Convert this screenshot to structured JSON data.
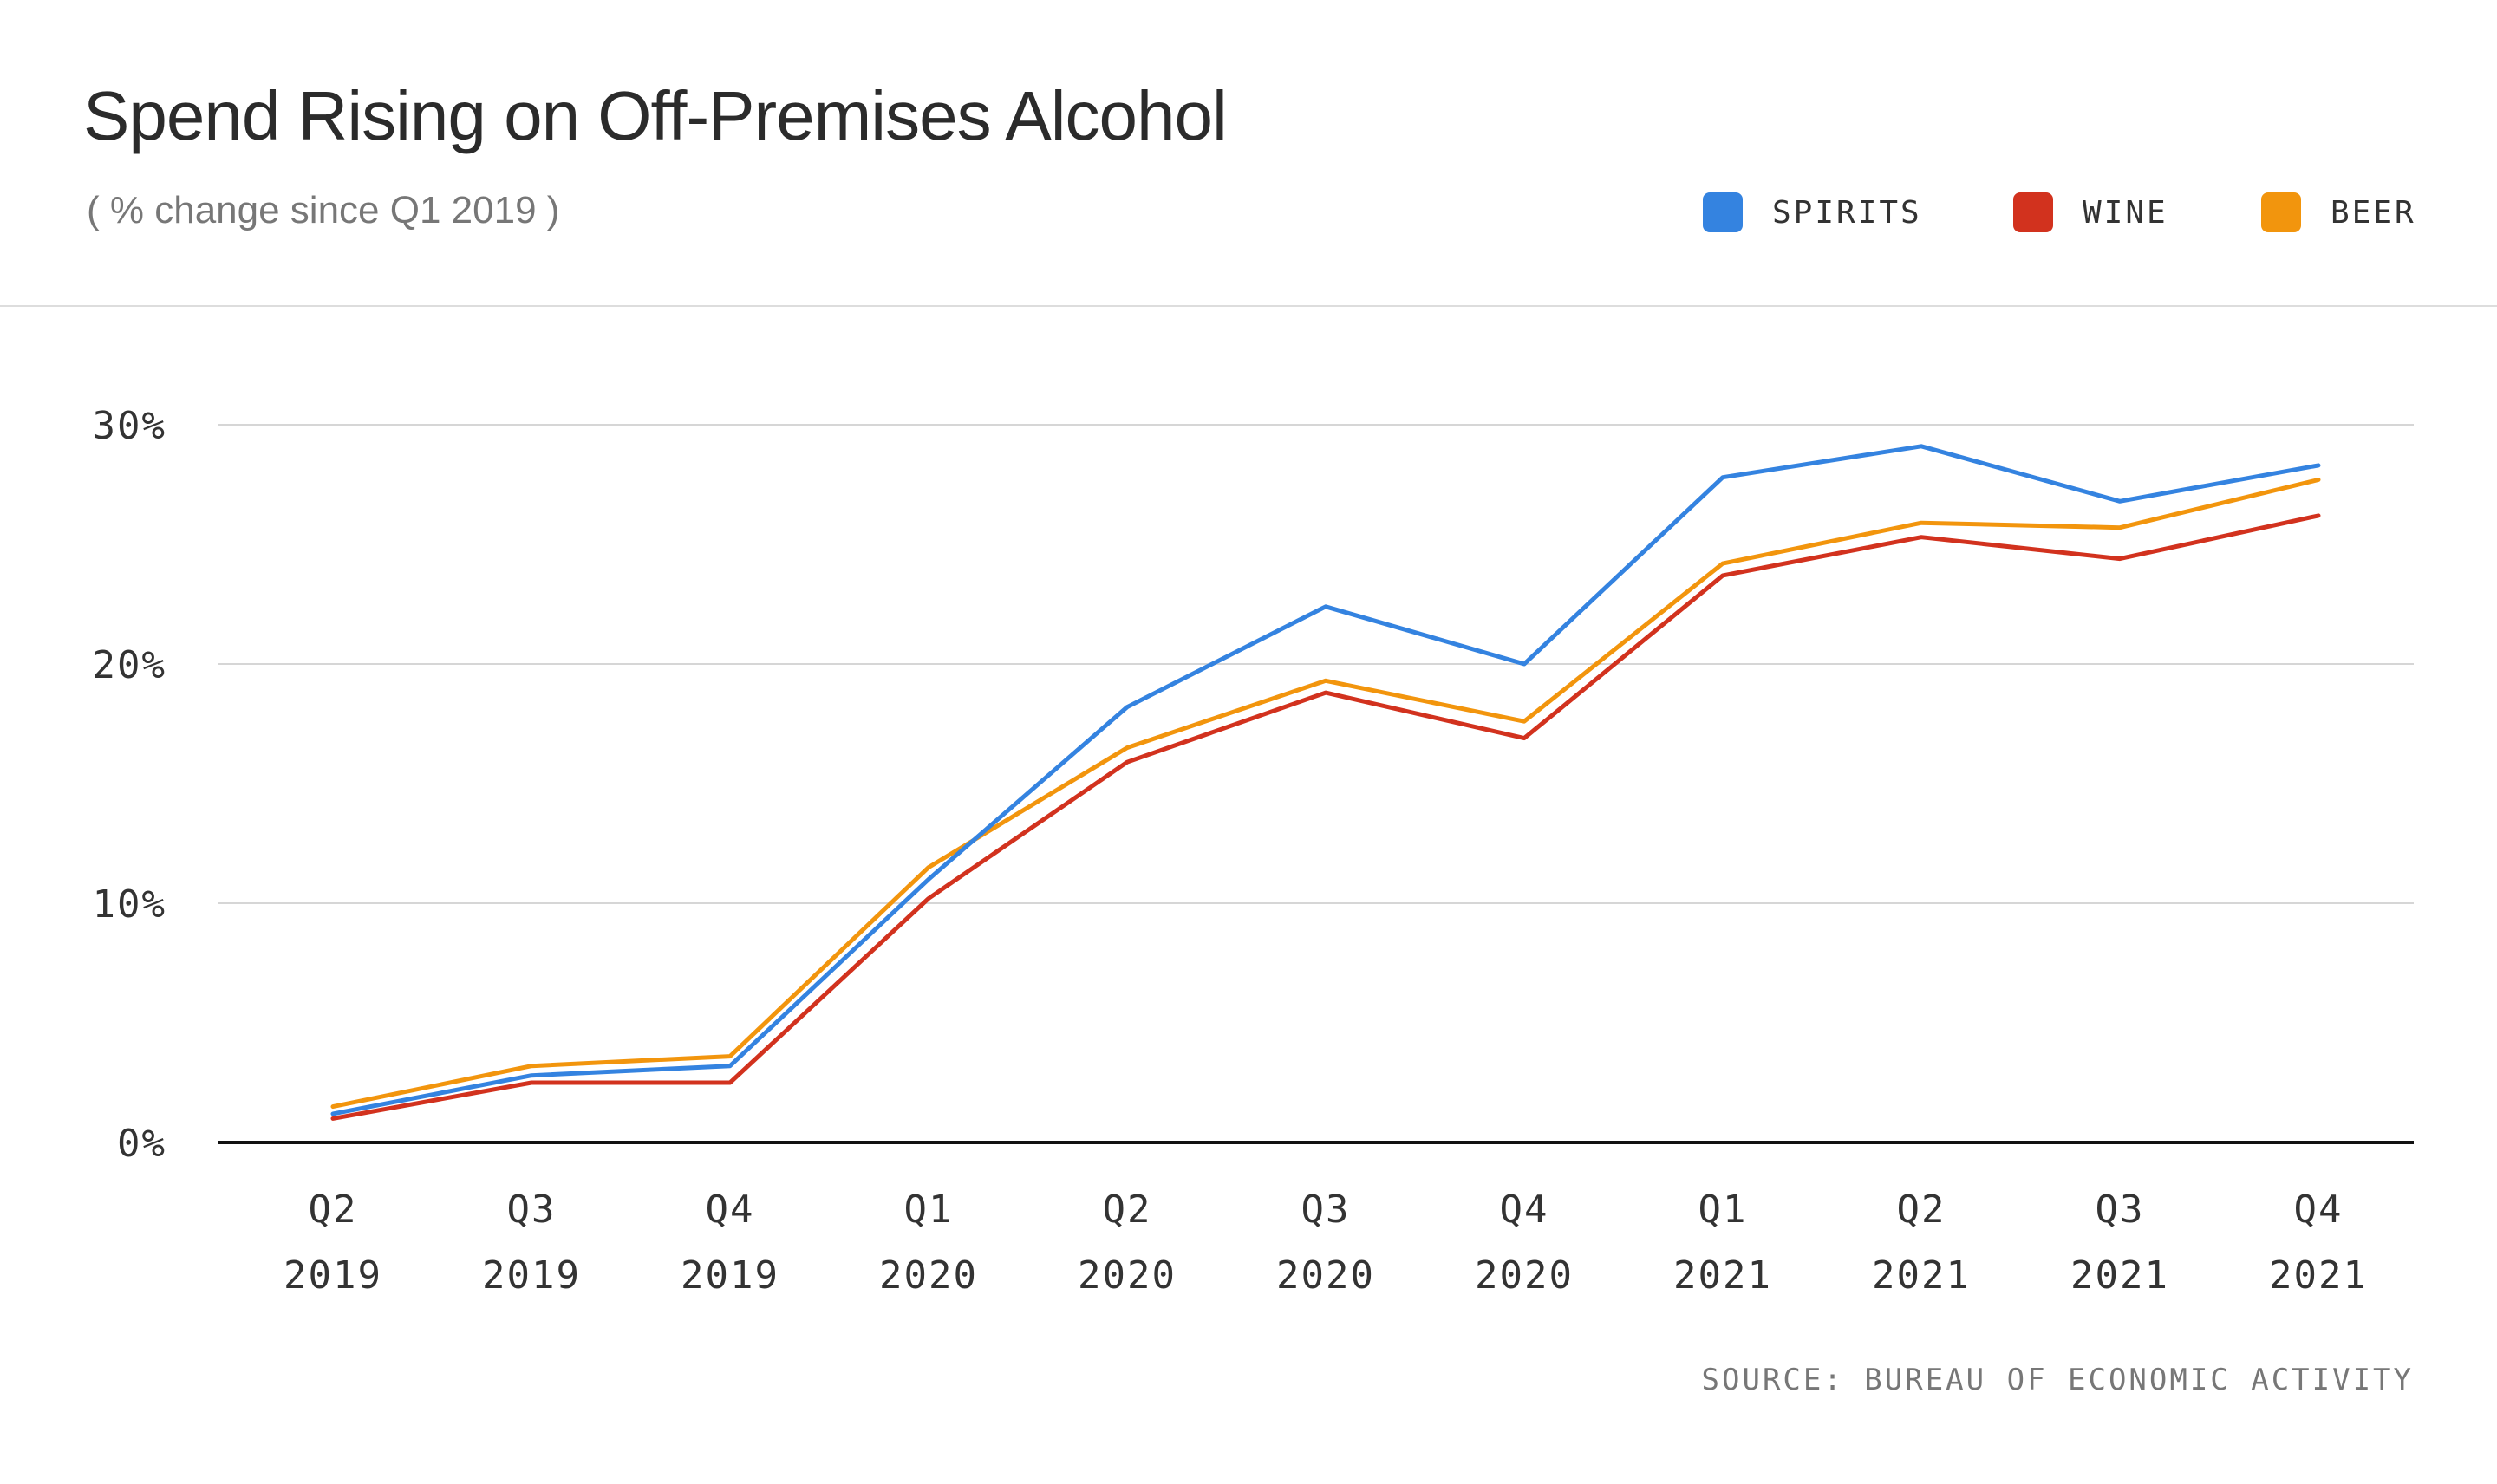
{
  "header": {
    "title": "Spend Rising on Off-Premises Alcohol",
    "subtitle": "( % change since Q1 2019 )"
  },
  "legend": [
    {
      "label": "SPIRITS",
      "color": "#3483E0"
    },
    {
      "label": "WINE",
      "color": "#D2321E"
    },
    {
      "label": "BEER",
      "color": "#F2950D"
    }
  ],
  "footer": {
    "source": "SOURCE: BUREAU OF ECONOMIC ACTIVITY"
  },
  "chart_data": {
    "type": "line",
    "title": "Spend Rising on Off-Premises Alcohol",
    "subtitle": "( % change since Q1 2019 )",
    "xlabel": "",
    "ylabel": "",
    "ylim": [
      0,
      30
    ],
    "yticks": [
      0,
      10,
      20,
      30
    ],
    "ytick_labels": [
      "0%",
      "10%",
      "20%",
      "30%"
    ],
    "grid": true,
    "legend_position": "top-right",
    "categories": [
      {
        "quarter": "Q2",
        "year": "2019"
      },
      {
        "quarter": "Q3",
        "year": "2019"
      },
      {
        "quarter": "Q4",
        "year": "2019"
      },
      {
        "quarter": "Q1",
        "year": "2020"
      },
      {
        "quarter": "Q2",
        "year": "2020"
      },
      {
        "quarter": "Q3",
        "year": "2020"
      },
      {
        "quarter": "Q4",
        "year": "2020"
      },
      {
        "quarter": "Q1",
        "year": "2021"
      },
      {
        "quarter": "Q2",
        "year": "2021"
      },
      {
        "quarter": "Q3",
        "year": "2021"
      },
      {
        "quarter": "Q4",
        "year": "2021"
      }
    ],
    "series": [
      {
        "name": "SPIRITS",
        "color": "#3483E0",
        "values": [
          1.2,
          2.8,
          3.2,
          11.0,
          18.2,
          22.4,
          20.0,
          27.8,
          29.1,
          26.8,
          28.3
        ]
      },
      {
        "name": "WINE",
        "color": "#D2321E",
        "values": [
          1.0,
          2.5,
          2.5,
          10.2,
          15.9,
          18.8,
          16.9,
          23.7,
          25.3,
          24.4,
          26.2
        ]
      },
      {
        "name": "BEER",
        "color": "#F2950D",
        "values": [
          1.5,
          3.2,
          3.6,
          11.5,
          16.5,
          19.3,
          17.6,
          24.2,
          25.9,
          25.7,
          27.7
        ]
      }
    ],
    "source": "SOURCE: BUREAU OF ECONOMIC ACTIVITY"
  }
}
